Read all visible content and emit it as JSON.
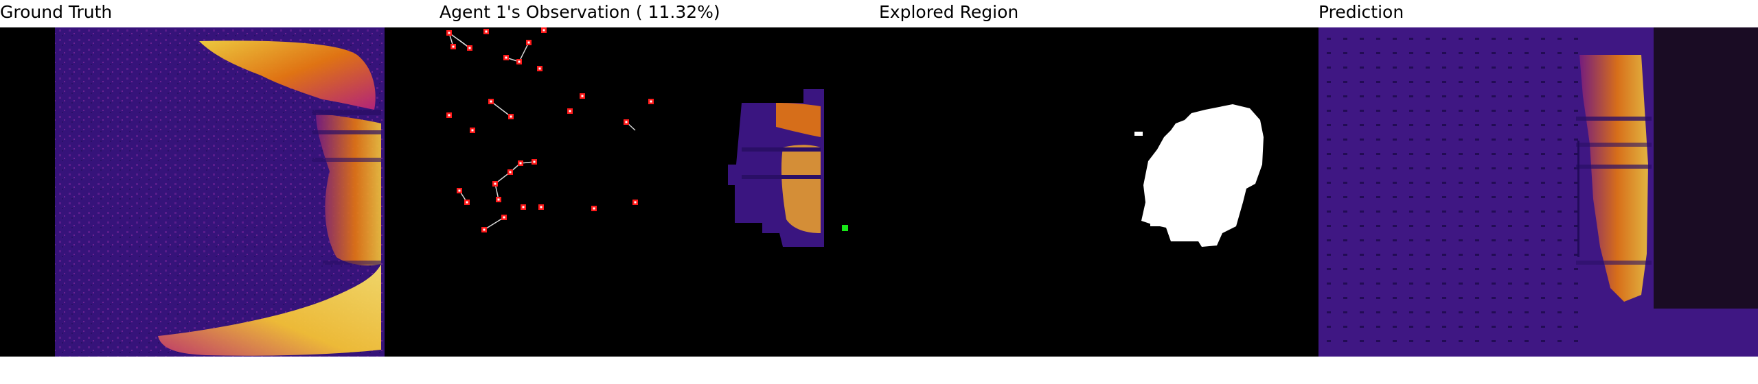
{
  "panels": {
    "ground_truth": {
      "title": "Ground Truth"
    },
    "observation": {
      "title": "Agent 1's Observation ( 11.32%)"
    },
    "explored": {
      "title": "Explored Region"
    },
    "prediction": {
      "title": "Prediction"
    }
  },
  "colors": {
    "page_background": "#ffffff",
    "panel_black": "#000000",
    "map_base": "#3a1580",
    "map_hot": "#f6d23c",
    "map_warm": "#e8780e",
    "agent_marker": "#ff1a1a",
    "target_marker": "#18e818",
    "explored_fill": "#ffffff",
    "link_line": "#d8d8d8"
  },
  "observation": {
    "agent_count": 24,
    "explored_fraction": 0.1132
  }
}
